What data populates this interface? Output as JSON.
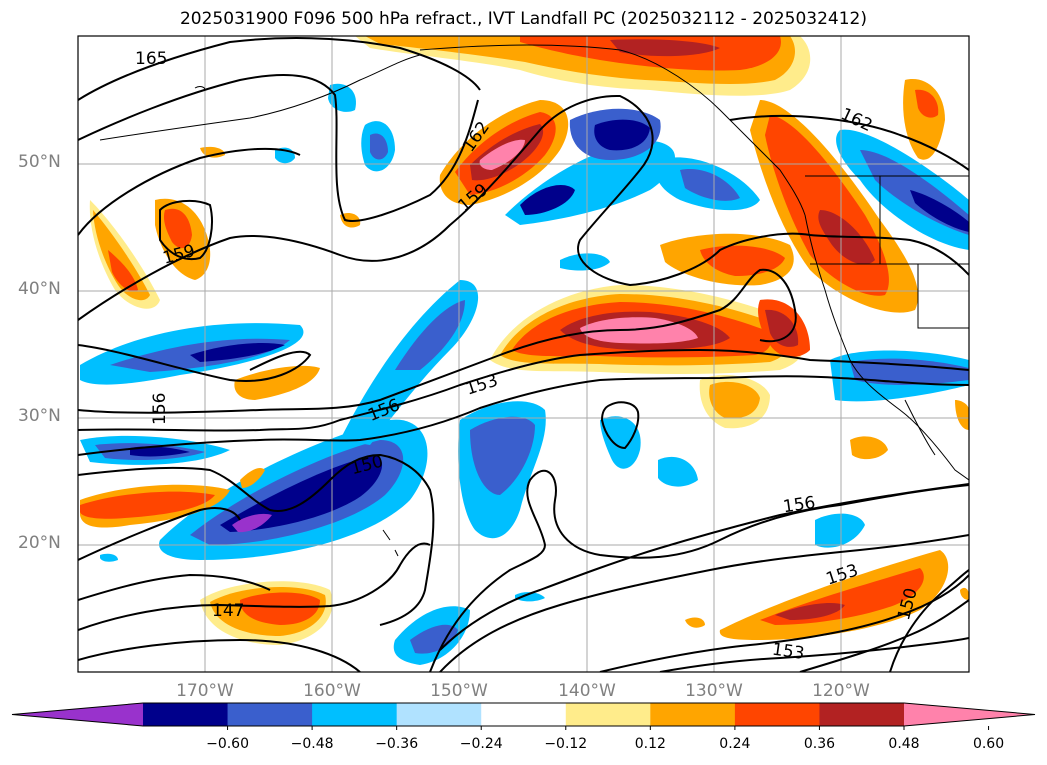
{
  "title": "2025031900 F096 500 hPa refract., IVT Landfall PC (2025032112 - 2025032412)",
  "latitude_labels": [
    "50°N",
    "40°N",
    "30°N",
    "20°N"
  ],
  "longitude_labels": [
    "170°W",
    "160°W",
    "150°W",
    "140°W",
    "130°W",
    "120°W"
  ],
  "contour_labels": [
    "165",
    "162",
    "159",
    "159",
    "162",
    "156",
    "153",
    "156",
    "150",
    "156",
    "153",
    "147",
    "150",
    "153"
  ],
  "colorbar": {
    "ticks": [
      "−0.60",
      "−0.48",
      "−0.36",
      "−0.24",
      "−0.12",
      "0.12",
      "0.24",
      "0.36",
      "0.48",
      "0.60"
    ],
    "colors": [
      "#9932cc",
      "#00008b",
      "#3a5fcd",
      "#00bfff",
      "#b0e2ff",
      "#ffffff",
      "#ffec8b",
      "#ffa500",
      "#ff4500",
      "#b22222",
      "#ff82ab"
    ]
  },
  "colors": {
    "gridline": "#aaaaaa",
    "axis_text": "#808080",
    "contour": "#000000"
  }
}
